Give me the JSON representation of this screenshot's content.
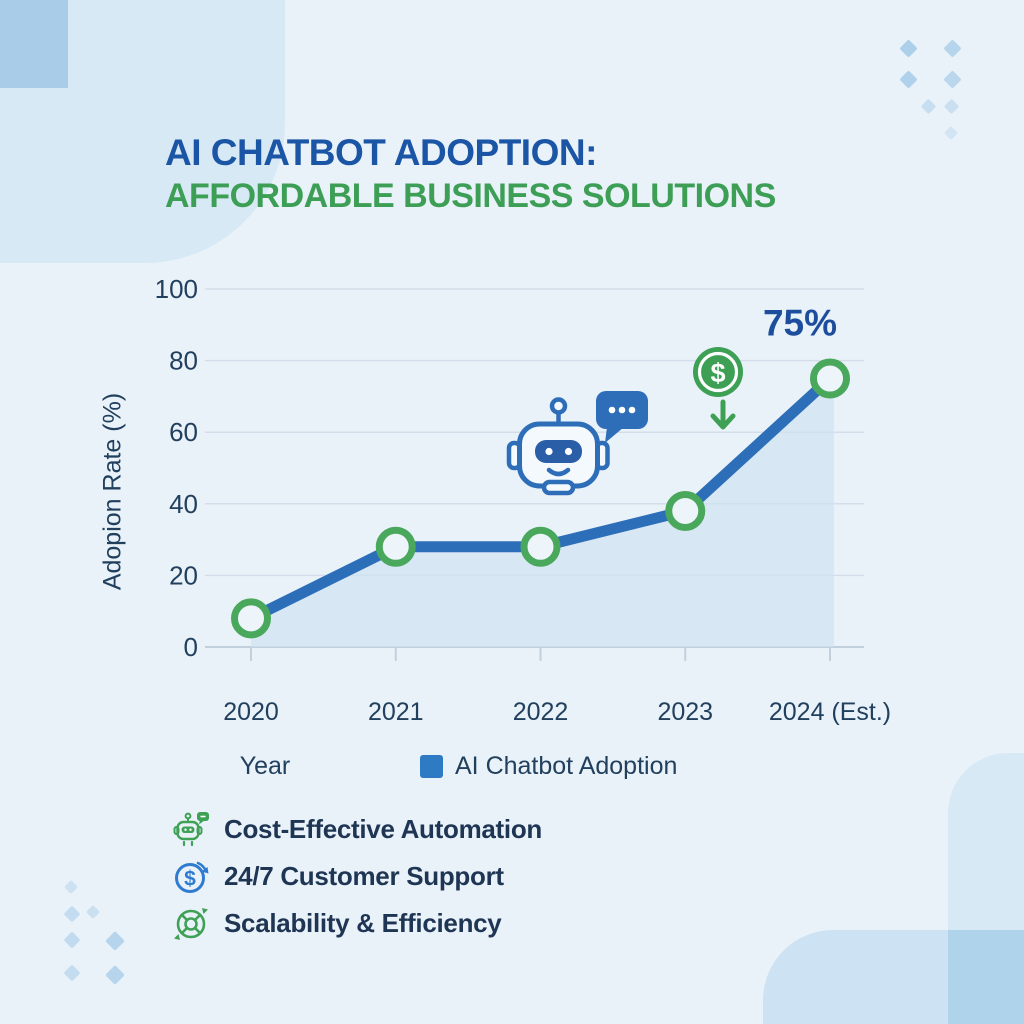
{
  "header": {
    "title_line1": "AI CHATBOT ADOPTION:",
    "title_line2": "AFFORDABLE BUSINESS SOLUTIONS"
  },
  "chart_data": {
    "type": "line",
    "categories": [
      "2020",
      "2021",
      "2022",
      "2023",
      "2024 (Est.)"
    ],
    "series": [
      {
        "name": "AI Chatbot Adoption",
        "values": [
          8,
          28,
          28,
          38,
          75
        ]
      }
    ],
    "annotation": {
      "text": "75%",
      "target": "2024 (Est.)"
    },
    "xlabel": "Year",
    "ylabel": "Adopion Rate (%)",
    "ylim": [
      0,
      100
    ],
    "yticks": [
      0,
      20,
      40,
      60,
      80,
      100
    ],
    "grid": "horizontal",
    "area_fill": true,
    "legend": {
      "position": "bottom",
      "items": [
        {
          "label": "AI Chatbot Adoption",
          "color": "#2e7bc4"
        }
      ]
    },
    "marker_style": {
      "shape": "circle",
      "stroke": "#4aa85c",
      "fill": "#edf5fb"
    },
    "line_color": "#2d6eb9"
  },
  "chart_icons": [
    {
      "name": "chatbot-robot-icon",
      "color": "#2e6db8"
    },
    {
      "name": "chat-bubble-icon",
      "color": "#2e6db8"
    },
    {
      "name": "dollar-coin-icon",
      "color": "#3da055"
    },
    {
      "name": "down-arrow-icon",
      "color": "#3da055"
    }
  ],
  "features": [
    {
      "icon": "robot-chat-icon",
      "icon_color": "#3fa156",
      "label": "Cost-Effective Automation"
    },
    {
      "icon": "dollar-refresh-icon",
      "icon_color": "#2f7bd0",
      "label": "24/7 Customer Support"
    },
    {
      "icon": "scalability-wheel-icon",
      "icon_color": "#3fa156",
      "label": "Scalability & Efficiency"
    }
  ],
  "colors": {
    "background": "#eaf2f9",
    "title_blue": "#1b55a5",
    "title_green": "#3d9f56",
    "navy_text": "#21405e",
    "line_blue": "#2d6eb9",
    "marker_green": "#4aa85c",
    "area_fill": "#cfe2f2",
    "annotation_blue": "#1d4e9e"
  }
}
